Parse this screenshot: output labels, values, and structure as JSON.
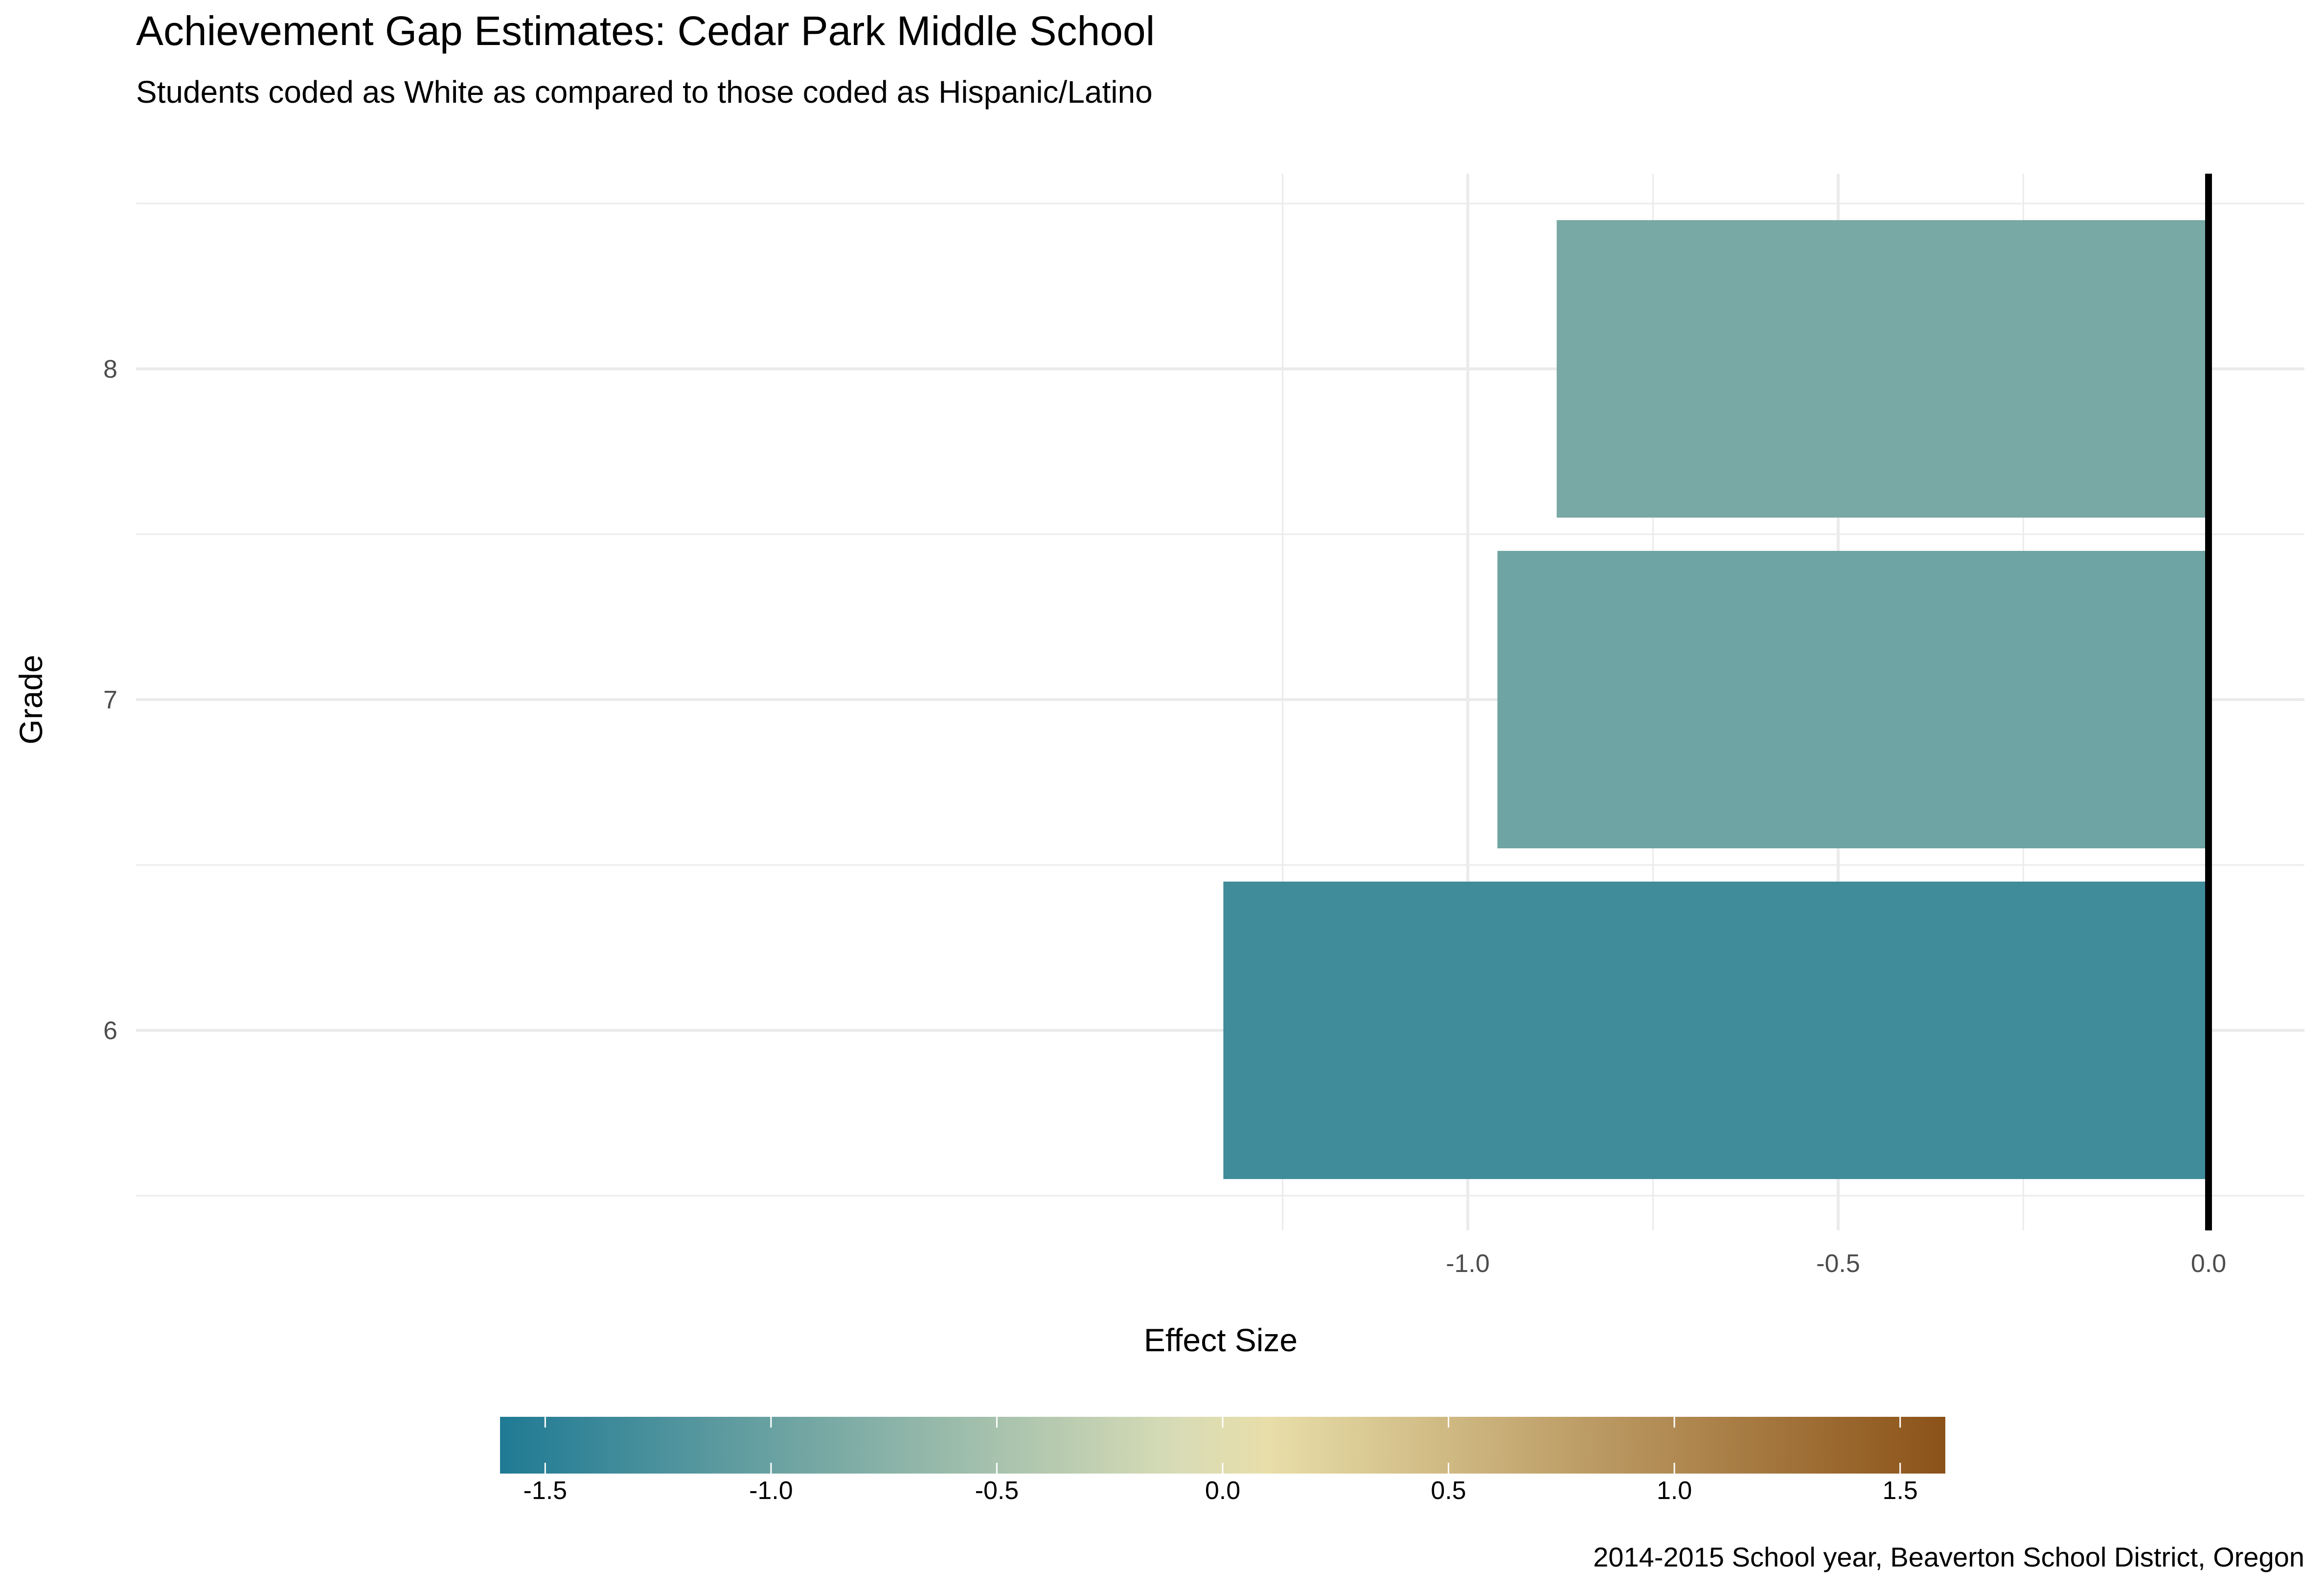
{
  "chart_data": {
    "type": "bar",
    "orientation": "horizontal",
    "title": "Achievement Gap Estimates: Cedar Park Middle School",
    "subtitle": "Students coded as White as compared to those coded as Hispanic/Latino",
    "caption": "2014-2015 School year, Beaverton  School District, Oregon",
    "xlabel": "Effect Size",
    "ylabel": "Grade",
    "categories": [
      "6",
      "7",
      "8"
    ],
    "values": [
      -1.33,
      -0.96,
      -0.88
    ],
    "xlim": [
      -1.4,
      0.13
    ],
    "x_ticks": [
      {
        "value": -1.0,
        "label": "-1.0"
      },
      {
        "value": -0.5,
        "label": "-0.5"
      },
      {
        "value": 0.0,
        "label": "0.0"
      }
    ],
    "x_minor_ticks": [
      -1.25,
      -0.75,
      -0.25
    ],
    "reference_line": 0,
    "grid": true,
    "legend": {
      "placement": "bottom",
      "type": "colorbar",
      "range": [
        -1.6,
        1.6
      ],
      "ticks": [
        {
          "value": -1.5,
          "label": "-1.5"
        },
        {
          "value": -1.0,
          "label": "-1.0"
        },
        {
          "value": -0.5,
          "label": "-0.5"
        },
        {
          "value": 0.0,
          "label": "0.0"
        },
        {
          "value": 0.5,
          "label": "0.5"
        },
        {
          "value": 1.0,
          "label": "1.0"
        },
        {
          "value": 1.5,
          "label": "1.5"
        }
      ],
      "colors": [
        "#1f7a94",
        "#d8dcb6",
        "#e8dea9",
        "#8b5218"
      ],
      "color_stops": [
        -1.6,
        -0.1,
        0.1,
        1.6
      ]
    },
    "colors": {
      "grid": "#ebebeb",
      "zero_line": "#000000"
    }
  }
}
